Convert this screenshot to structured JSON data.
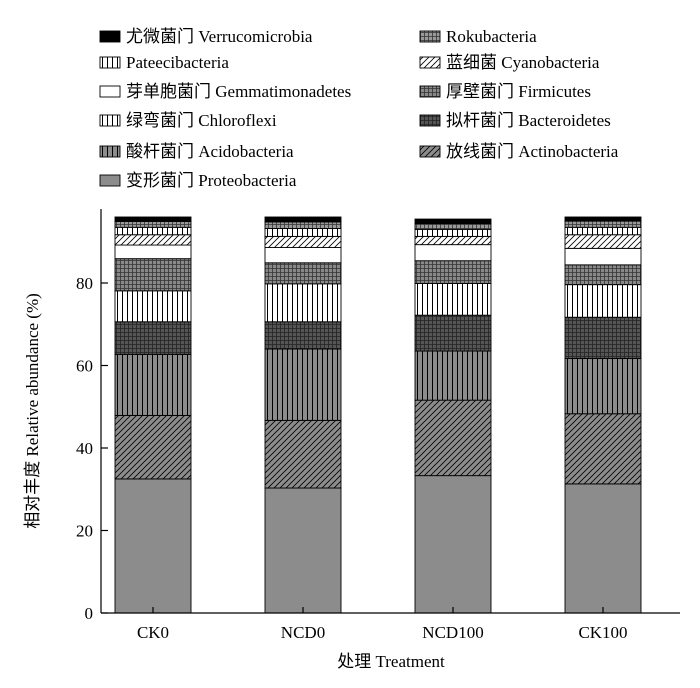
{
  "chart_data": {
    "type": "bar",
    "stacked": true,
    "categories": [
      "CK0",
      "NCD0",
      "NCD100",
      "CK100"
    ],
    "xlabel": "处理 Treatment",
    "ylabel": "相对丰度 Relative abundance (%)",
    "ylim": [
      0,
      100
    ],
    "yticks": [
      0,
      20,
      40,
      60,
      80
    ],
    "grid": false,
    "legend_position": "top",
    "series": [
      {
        "name": "变形菌门 Proteobacteria",
        "values": [
          32.5,
          30.3,
          33.3,
          31.3
        ],
        "fill": "#8c8c8c",
        "pattern": "solid"
      },
      {
        "name": "放线菌门 Actinobacteria",
        "values": [
          15.4,
          16.4,
          18.3,
          17.0
        ],
        "fill": "#8c8c8c",
        "pattern": "diagonal"
      },
      {
        "name": "酸杆菌门 Acidobacteria",
        "values": [
          14.8,
          17.3,
          11.9,
          13.4
        ],
        "fill": "#8c8c8c",
        "pattern": "vertical"
      },
      {
        "name": "拟杆菌门 Bacteroidetes",
        "values": [
          7.9,
          6.6,
          8.7,
          10.0
        ],
        "fill": "#555555",
        "pattern": "dark-grid"
      },
      {
        "name": "绿弯菌门 Chloroflexi",
        "values": [
          7.5,
          9.2,
          7.7,
          7.9
        ],
        "fill": "#ffffff",
        "pattern": "vertical"
      },
      {
        "name": "厚壁菌门 Firmicutes",
        "values": [
          7.8,
          5.1,
          5.5,
          4.8
        ],
        "fill": "#888888",
        "pattern": "grid"
      },
      {
        "name": "芽单胞菌门 Gemmatimonadetes",
        "values": [
          3.3,
          3.7,
          3.9,
          4.0
        ],
        "fill": "#ffffff",
        "pattern": "solid"
      },
      {
        "name": "蓝细菌 Cyanobacteria",
        "values": [
          2.5,
          2.7,
          2.0,
          3.3
        ],
        "fill": "#ffffff",
        "pattern": "diagonal"
      },
      {
        "name": "Pateecibacteria",
        "values": [
          1.8,
          1.9,
          1.7,
          1.8
        ],
        "fill": "#ffffff",
        "pattern": "vertical"
      },
      {
        "name": "Rokubacteria",
        "values": [
          1.4,
          1.6,
          1.4,
          1.5
        ],
        "fill": "#999999",
        "pattern": "grid"
      },
      {
        "name": "尤微菌门 Verrucomicrobia",
        "values": [
          1.1,
          1.2,
          1.1,
          1.0
        ],
        "fill": "#000000",
        "pattern": "solid"
      }
    ],
    "legend_order": [
      "尤微菌门 Verrucomicrobia",
      "Rokubacteria",
      "Pateecibacteria",
      "蓝细菌 Cyanobacteria",
      "芽单胞菌门 Gemmatimonadetes",
      "厚壁菌门 Firmicutes",
      "绿弯菌门 Chloroflexi",
      "拟杆菌门 Bacteroidetes",
      "酸杆菌门 Acidobacteria",
      "放线菌门 Actinobacteria",
      "变形菌门 Proteobacteria"
    ]
  }
}
